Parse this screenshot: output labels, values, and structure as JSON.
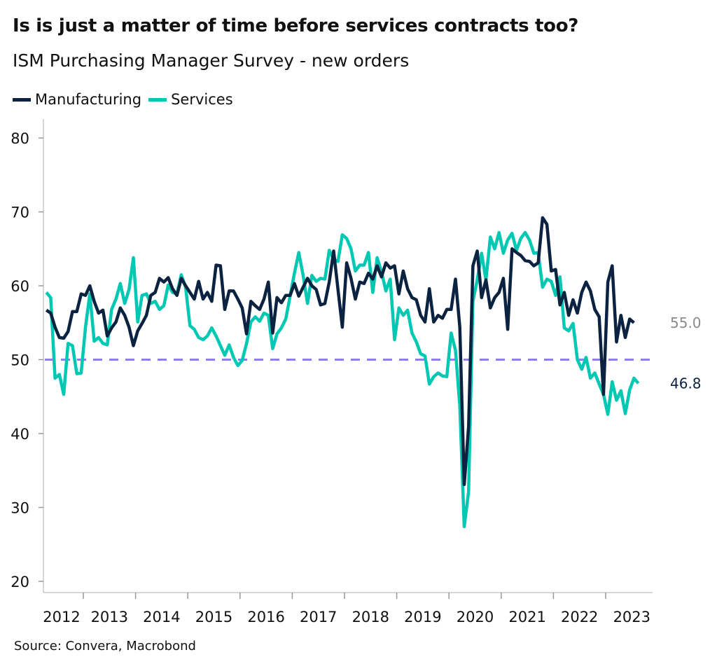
{
  "header": {
    "title": "Is is just a matter of time before services contracts too?",
    "subtitle": "ISM Purchasing Manager Survey - new orders"
  },
  "footer": {
    "source": "Source: Convera, Macrobond"
  },
  "chart_data": {
    "type": "line",
    "title": "Is is just a matter of time before services contracts too?",
    "subtitle": "ISM Purchasing Manager Survey - new orders",
    "xlabel": "",
    "ylabel": "",
    "ylim": [
      20,
      80
    ],
    "yticks": [
      20,
      30,
      40,
      50,
      60,
      70,
      80
    ],
    "xtick_labels": [
      "2012",
      "2013",
      "2014",
      "2015",
      "2016",
      "2017",
      "2018",
      "2019",
      "2020",
      "2021",
      "2022",
      "2023"
    ],
    "xlim": [
      "2012-04",
      "2023-08"
    ],
    "grid": false,
    "legend": "top-left",
    "reference_line": {
      "y": 50,
      "style": "dashed",
      "color": "#8f7cf0"
    },
    "x": [
      "2012-04",
      "2012-05",
      "2012-06",
      "2012-07",
      "2012-08",
      "2012-09",
      "2012-10",
      "2012-11",
      "2012-12",
      "2013-01",
      "2013-02",
      "2013-03",
      "2013-04",
      "2013-05",
      "2013-06",
      "2013-07",
      "2013-08",
      "2013-09",
      "2013-10",
      "2013-11",
      "2013-12",
      "2014-01",
      "2014-02",
      "2014-03",
      "2014-04",
      "2014-05",
      "2014-06",
      "2014-07",
      "2014-08",
      "2014-09",
      "2014-10",
      "2014-11",
      "2014-12",
      "2015-01",
      "2015-02",
      "2015-03",
      "2015-04",
      "2015-05",
      "2015-06",
      "2015-07",
      "2015-08",
      "2015-09",
      "2015-10",
      "2015-11",
      "2015-12",
      "2016-01",
      "2016-02",
      "2016-03",
      "2016-04",
      "2016-05",
      "2016-06",
      "2016-07",
      "2016-08",
      "2016-09",
      "2016-10",
      "2016-11",
      "2016-12",
      "2017-01",
      "2017-02",
      "2017-03",
      "2017-04",
      "2017-05",
      "2017-06",
      "2017-07",
      "2017-08",
      "2017-09",
      "2017-10",
      "2017-11",
      "2017-12",
      "2018-01",
      "2018-02",
      "2018-03",
      "2018-04",
      "2018-05",
      "2018-06",
      "2018-07",
      "2018-08",
      "2018-09",
      "2018-10",
      "2018-11",
      "2018-12",
      "2019-01",
      "2019-02",
      "2019-03",
      "2019-04",
      "2019-05",
      "2019-06",
      "2019-07",
      "2019-08",
      "2019-09",
      "2019-10",
      "2019-11",
      "2019-12",
      "2020-01",
      "2020-02",
      "2020-03",
      "2020-04",
      "2020-05",
      "2020-06",
      "2020-07",
      "2020-08",
      "2020-09",
      "2020-10",
      "2020-11",
      "2020-12",
      "2021-01",
      "2021-02",
      "2021-03",
      "2021-04",
      "2021-05",
      "2021-06",
      "2021-07",
      "2021-08",
      "2021-09",
      "2021-10",
      "2021-11",
      "2021-12",
      "2022-01",
      "2022-02",
      "2022-03",
      "2022-04",
      "2022-05",
      "2022-06",
      "2022-07",
      "2022-08",
      "2022-09",
      "2022-10",
      "2022-11",
      "2022-12",
      "2023-01",
      "2023-02",
      "2023-03",
      "2023-04",
      "2023-05",
      "2023-06",
      "2023-07",
      "2023-08"
    ],
    "series": [
      {
        "name": "Manufacturing",
        "color": "#0b2340",
        "end_label": "55.0",
        "end_label_color": "#8a8a8a",
        "values": [
          56.7,
          56.3,
          54.4,
          53.0,
          52.9,
          53.8,
          56.5,
          56.5,
          58.9,
          58.7,
          60.0,
          57.9,
          56.3,
          56.7,
          53.2,
          54.3,
          55.1,
          57.0,
          56.0,
          54.4,
          51.9,
          53.9,
          54.9,
          56.0,
          58.7,
          59.1,
          61.0,
          60.5,
          61.1,
          59.6,
          58.7,
          61.0,
          60.0,
          59.1,
          58.2,
          60.6,
          58.2,
          59.1,
          57.9,
          62.8,
          62.7,
          56.8,
          59.3,
          59.3,
          58.2,
          57.0,
          53.5,
          57.9,
          57.3,
          56.8,
          58.2,
          60.5,
          53.6,
          58.4,
          57.7,
          58.7,
          58.7,
          60.3,
          58.6,
          59.8,
          61.0,
          60.0,
          59.5,
          57.4,
          57.6,
          60.5,
          64.7,
          59.5,
          54.4,
          63.1,
          61.0,
          58.2,
          60.5,
          60.3,
          61.7,
          60.9,
          62.7,
          61.2,
          63.1,
          62.4,
          62.7,
          58.9,
          62.0,
          59.6,
          58.4,
          58.1,
          56.0,
          55.1,
          59.6,
          55.1,
          56.0,
          55.6,
          56.8,
          56.8,
          60.9,
          54.4,
          33.1,
          40.9,
          62.7,
          64.7,
          58.4,
          60.8,
          57.0,
          58.4,
          59.1,
          61.0,
          54.1,
          65.0,
          64.5,
          64.1,
          63.4,
          63.3,
          62.7,
          63.1,
          69.2,
          68.3,
          62.0,
          62.2,
          57.4,
          59.1,
          56.0,
          58.1,
          56.3,
          59.1,
          60.5,
          59.3,
          56.8,
          55.8,
          45.3,
          60.5,
          62.7,
          52.4,
          56.0,
          53.0,
          55.5,
          55.0,
          null
        ]
      },
      {
        "name": "Services",
        "color": "#00c8b3",
        "end_label": "46.8",
        "end_label_color": "#0b2340",
        "values": [
          59.1,
          58.4,
          47.5,
          48.0,
          45.3,
          52.2,
          51.9,
          48.1,
          48.2,
          54.4,
          58.9,
          52.5,
          53.0,
          52.2,
          52.0,
          56.8,
          58.2,
          60.3,
          57.6,
          59.5,
          63.8,
          55.1,
          58.7,
          58.9,
          57.6,
          57.9,
          56.8,
          57.3,
          60.1,
          59.1,
          58.9,
          61.5,
          59.8,
          54.6,
          54.1,
          53.0,
          52.7,
          53.2,
          54.3,
          53.2,
          51.9,
          50.6,
          52.0,
          50.3,
          49.2,
          49.9,
          52.2,
          55.1,
          55.8,
          55.2,
          56.3,
          56.0,
          51.5,
          53.5,
          54.3,
          55.5,
          58.6,
          61.7,
          64.5,
          61.4,
          57.6,
          61.4,
          60.6,
          61.0,
          60.9,
          64.8,
          63.6,
          63.3,
          66.9,
          66.4,
          65.0,
          62.0,
          62.8,
          62.8,
          64.5,
          59.1,
          63.8,
          61.9,
          59.3,
          60.9,
          52.7,
          57.0,
          56.0,
          56.7,
          53.6,
          52.4,
          50.8,
          50.5,
          46.7,
          47.7,
          48.2,
          47.8,
          47.7,
          53.6,
          51.3,
          43.7,
          27.4,
          32.1,
          57.9,
          60.8,
          64.4,
          60.8,
          66.6,
          65.0,
          67.2,
          64.4,
          66.2,
          67.1,
          64.8,
          66.4,
          67.2,
          66.2,
          64.4,
          64.5,
          59.8,
          60.9,
          60.6,
          58.7,
          61.2,
          54.3,
          53.9,
          54.9,
          50.0,
          48.7,
          50.3,
          47.5,
          48.2,
          46.7,
          45.3,
          42.6,
          47.0,
          44.5,
          45.8,
          42.7,
          45.9,
          47.5,
          46.8
        ]
      }
    ]
  }
}
